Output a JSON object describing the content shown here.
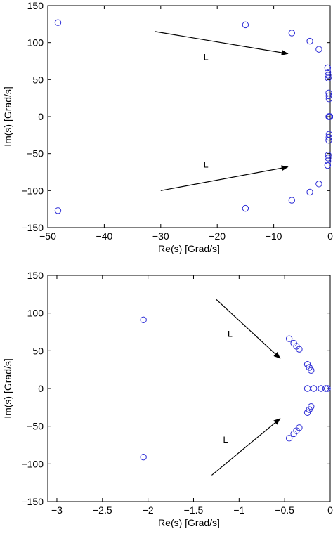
{
  "chart_data": [
    {
      "type": "scatter",
      "title": "",
      "xlabel": "Re(s) [Grad/s]",
      "ylabel": "Im(s) [Grad/s]",
      "xlim": [
        -50,
        0
      ],
      "ylim": [
        -150,
        150
      ],
      "xticks": [
        -50,
        -40,
        -30,
        -20,
        -10,
        0
      ],
      "xtick_labels": [
        "−50",
        "−40",
        "−30",
        "−20",
        "−10",
        "0"
      ],
      "yticks": [
        -150,
        -100,
        -50,
        0,
        50,
        100,
        150
      ],
      "ytick_labels": [
        "−150",
        "−100",
        "−50",
        "0",
        "50",
        "100",
        "150"
      ],
      "grid": false,
      "marker_color": "#2b2bd6",
      "x": [
        -48.2,
        -48.2,
        -15.0,
        -15.0,
        -6.8,
        -6.8,
        -3.6,
        -3.6,
        -2.0,
        -2.0,
        -0.45,
        -0.45,
        -0.42,
        -0.42,
        -0.38,
        -0.38,
        -0.35,
        -0.35,
        -0.25,
        -0.25,
        -0.22,
        -0.22,
        -0.2,
        -0.2,
        -0.25,
        -0.2,
        -0.15,
        -0.08,
        -0.05
      ],
      "y": [
        127,
        -127,
        124,
        -124,
        113,
        -113,
        102,
        -102,
        91,
        -91,
        66,
        -66,
        60,
        -60,
        56,
        -56,
        52,
        -52,
        32,
        -32,
        28,
        -28,
        24,
        -24,
        0,
        0,
        0,
        0,
        0
      ],
      "annotations": [
        {
          "text": "L",
          "x": -22,
          "y": 80,
          "arrow_from": [
            -31,
            115
          ],
          "arrow_to": [
            -7.5,
            85
          ]
        },
        {
          "text": "L",
          "x": -22,
          "y": -65,
          "arrow_from": [
            -30,
            -100
          ],
          "arrow_to": [
            -7.5,
            -68
          ]
        }
      ]
    },
    {
      "type": "scatter",
      "title": "",
      "xlabel": "Re(s) [Grad/s]",
      "ylabel": "Im(s) [Grad/s]",
      "xlim": [
        -3.1,
        0
      ],
      "ylim": [
        -150,
        150
      ],
      "xticks": [
        -3,
        -2.5,
        -2,
        -1.5,
        -1,
        -0.5,
        0
      ],
      "xtick_labels": [
        "−3",
        "−2.5",
        "−2",
        "−1.5",
        "−1",
        "−0.5",
        "0"
      ],
      "yticks": [
        -150,
        -100,
        -50,
        0,
        50,
        100,
        150
      ],
      "ytick_labels": [
        "−150",
        "−100",
        "−50",
        "0",
        "50",
        "100",
        "150"
      ],
      "grid": false,
      "marker_color": "#2b2bd6",
      "x": [
        -2.05,
        -2.05,
        -0.45,
        -0.45,
        -0.4,
        -0.4,
        -0.37,
        -0.37,
        -0.34,
        -0.34,
        -0.25,
        -0.25,
        -0.23,
        -0.23,
        -0.21,
        -0.21,
        -0.25,
        -0.18,
        -0.1,
        -0.05,
        -0.03
      ],
      "y": [
        91,
        -91,
        66,
        -66,
        60,
        -60,
        56,
        -56,
        52,
        -52,
        32,
        -32,
        28,
        -28,
        24,
        -24,
        0,
        0,
        0,
        0,
        0
      ],
      "annotations": [
        {
          "text": "L",
          "x": -1.1,
          "y": 72,
          "arrow_from": [
            -1.25,
            118
          ],
          "arrow_to": [
            -0.55,
            40
          ]
        },
        {
          "text": "L",
          "x": -1.15,
          "y": -68,
          "arrow_from": [
            -1.3,
            -115
          ],
          "arrow_to": [
            -0.55,
            -40
          ]
        }
      ]
    }
  ]
}
